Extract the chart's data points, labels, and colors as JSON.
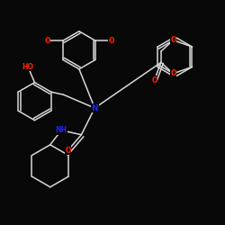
{
  "background_color": "#080808",
  "bond_color": "#d8d8d8",
  "atom_colors": {
    "O": "#ff2000",
    "N": "#2222ff",
    "C": "#d8d8d8"
  },
  "figsize": [
    2.5,
    2.5
  ],
  "dpi": 100
}
